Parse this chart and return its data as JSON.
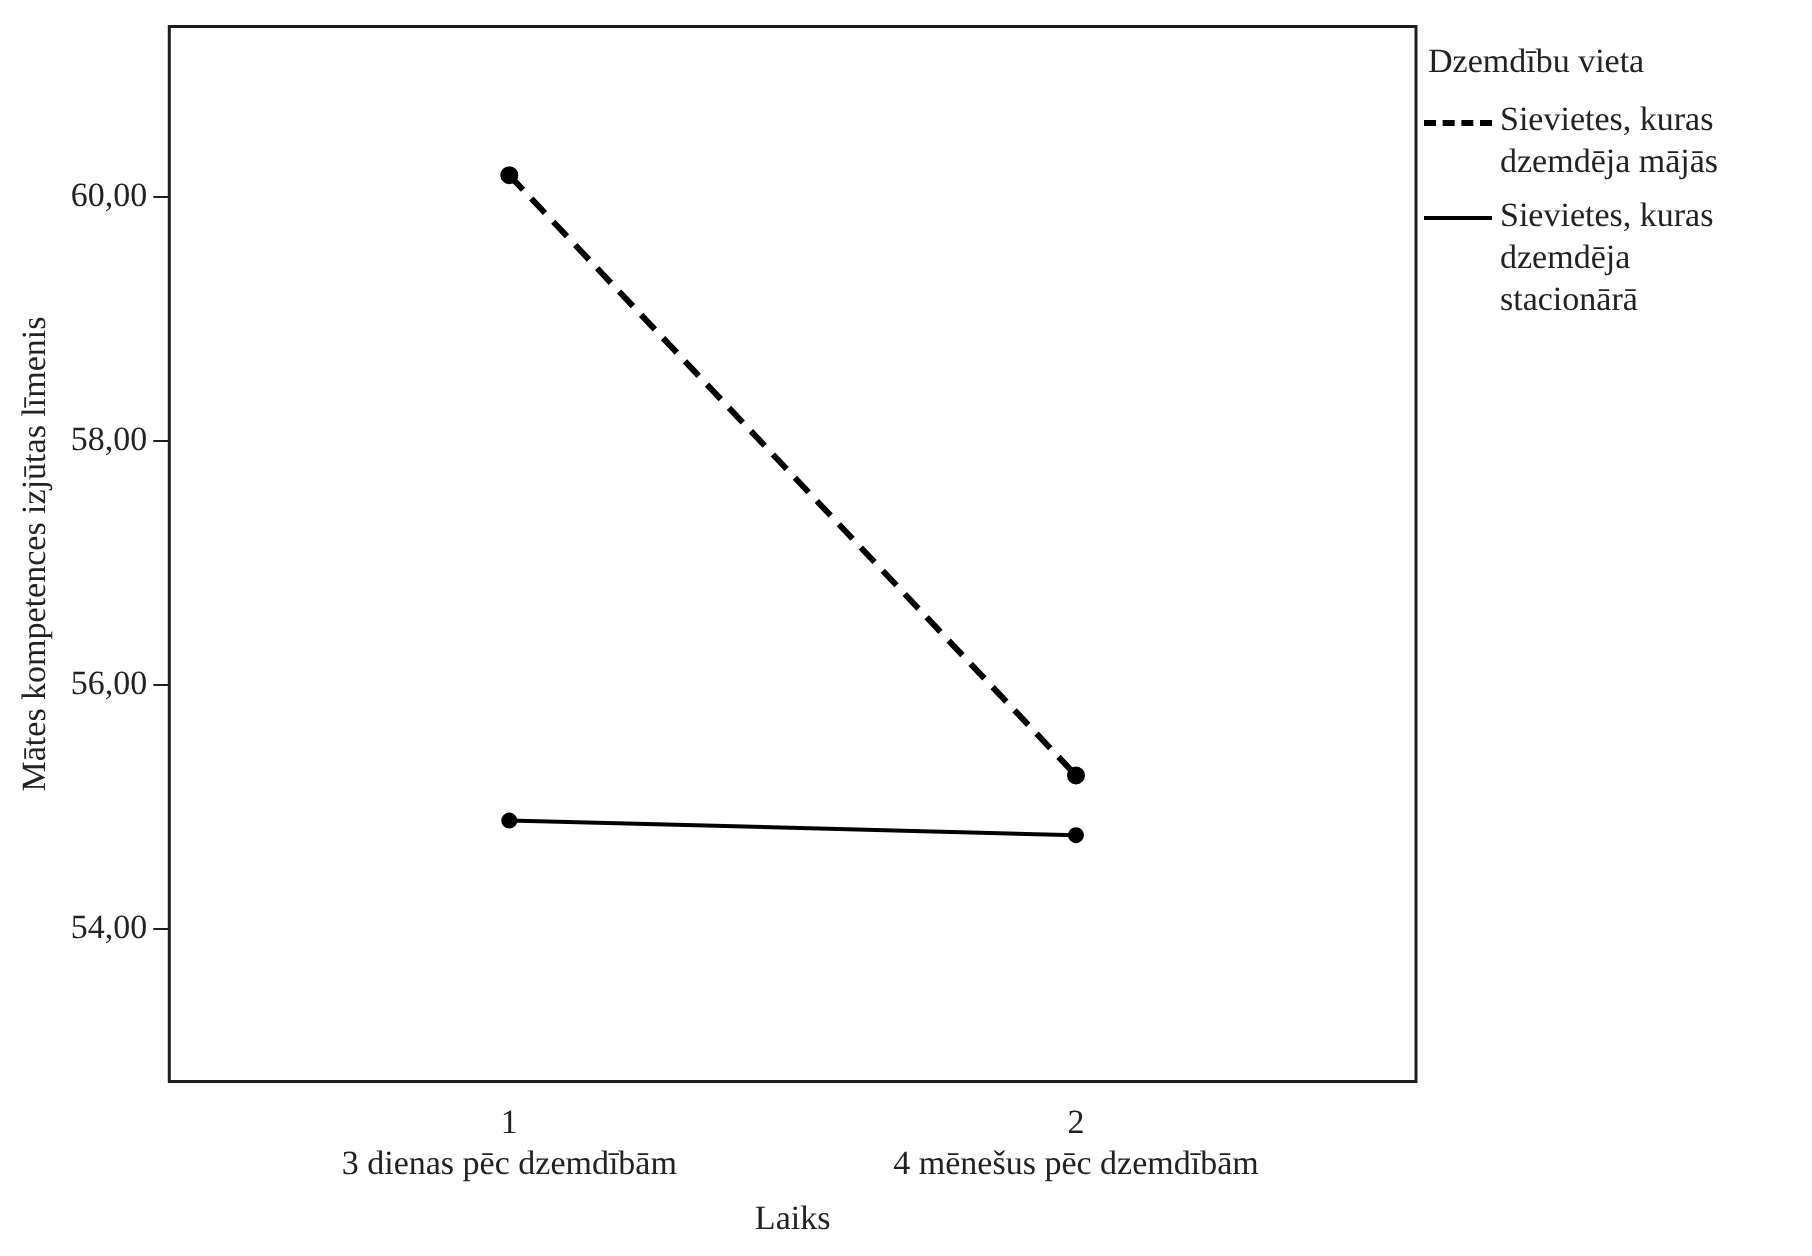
{
  "chart_data": {
    "type": "line",
    "xlabel": "Laiks",
    "ylabel": "Mātes kompetences izjūtas līmenis",
    "legend_title": "Dzemdību vieta",
    "categories": [
      "1\n3 dienas pēc dzemdībām",
      "2\n4 mēnešus pēc dzemdībām"
    ],
    "ylim": [
      52.75,
      61.4
    ],
    "yticks": [
      {
        "value": 54,
        "label": "54,00"
      },
      {
        "value": 56,
        "label": "56,00"
      },
      {
        "value": 58,
        "label": "58,00"
      },
      {
        "value": 60,
        "label": "60,00"
      }
    ],
    "series": [
      {
        "name": "Sievietes, kuras dzemdēja mājās",
        "color": "#000000",
        "line_style": "dashed",
        "values": [
          60.18,
          55.26
        ]
      },
      {
        "name": "Sievietes, kuras dzemdēja stacionārā",
        "color": "#000000",
        "line_style": "solid",
        "values": [
          54.89,
          54.77
        ]
      }
    ],
    "marker": "circle",
    "grid": false,
    "legend": "top right"
  }
}
